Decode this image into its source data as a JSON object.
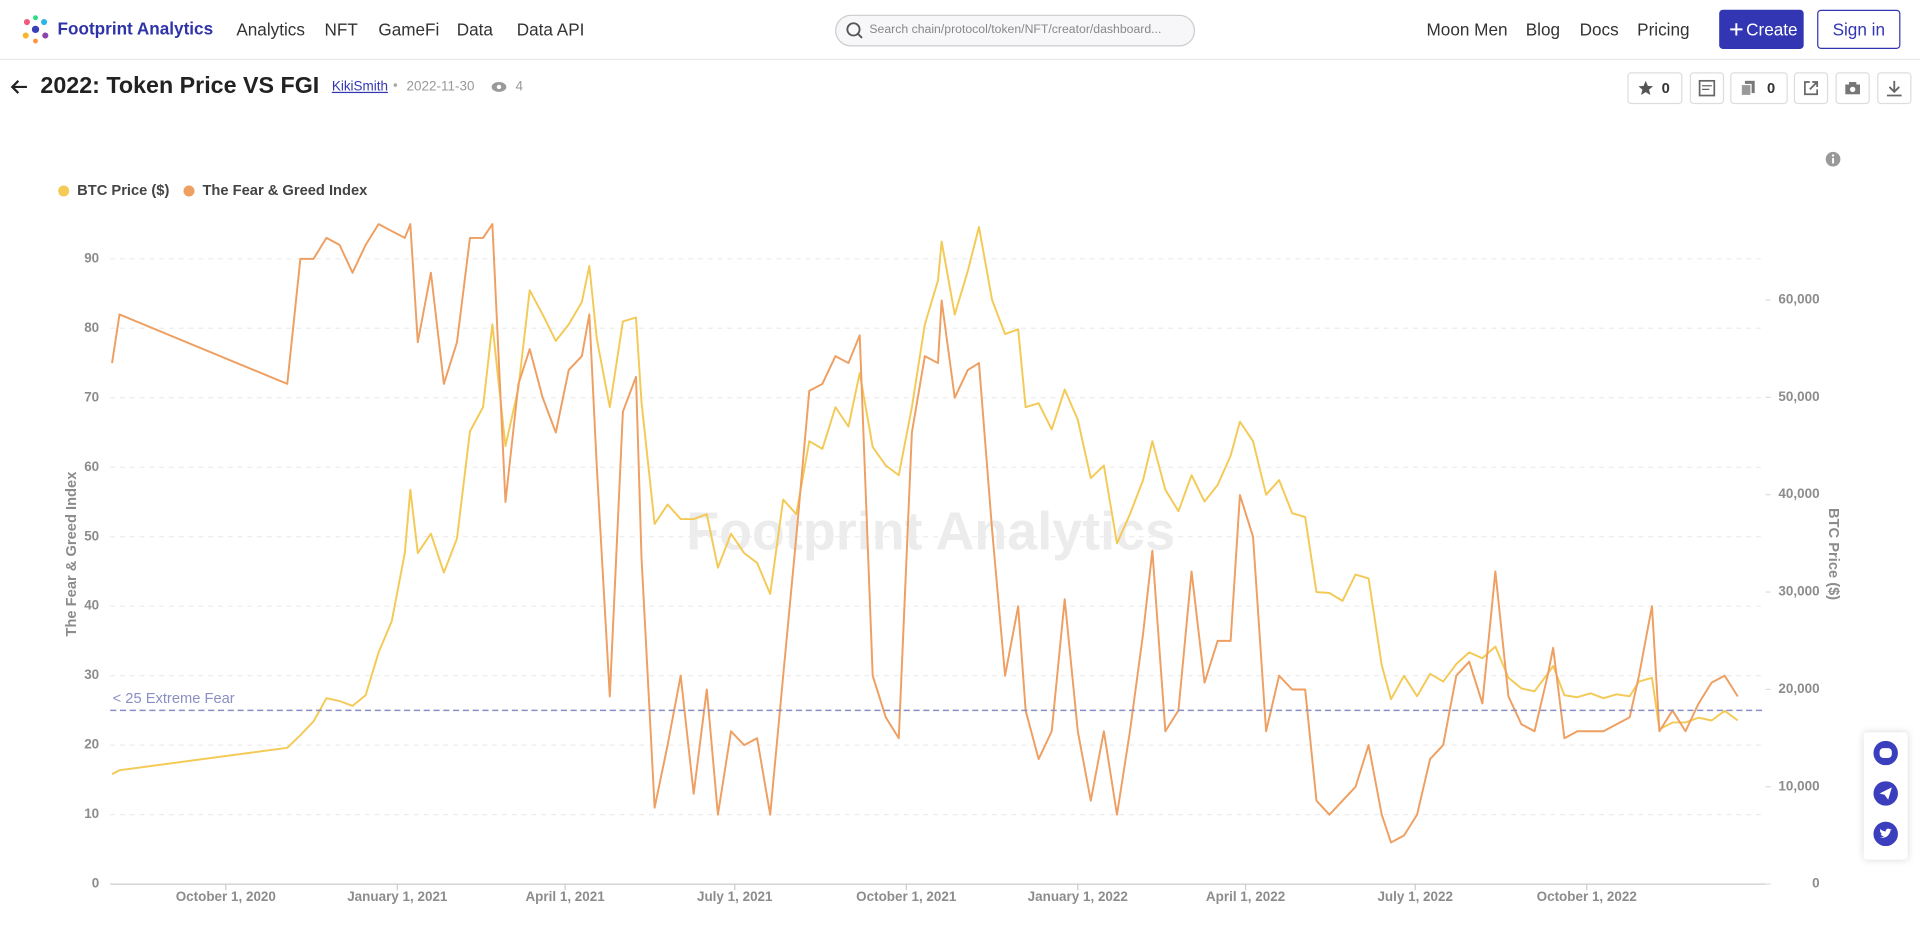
{
  "header": {
    "logo": "Footprint Analytics",
    "nav": [
      "Analytics",
      "NFT",
      "GameFi",
      "Data",
      "Data API"
    ],
    "search_placeholder": "Search chain/protocol/token/NFT/creator/dashboard...",
    "right_nav": [
      "Moon Men",
      "Blog",
      "Docs",
      "Pricing"
    ],
    "create": "Create",
    "sign_in": "Sign in"
  },
  "dashboard": {
    "title": "2022: Token Price VS FGI",
    "author": "KikiSmith",
    "date": "2022-11-30",
    "views": 4,
    "stars": 0,
    "copies": 0
  },
  "chart_data": {
    "type": "line",
    "watermark": "Footprint Analytics",
    "y_label": "The Fear & Greed Index",
    "y2_label": "BTC Price ($)",
    "legend": "top-left",
    "grid": true,
    "xlim": [
      "2020-07-31",
      "2023-01-05"
    ],
    "xticks": [
      {
        "value": "2020-10-01",
        "label": "October 1, 2020"
      },
      {
        "value": "2021-01-01",
        "label": "January 1, 2021"
      },
      {
        "value": "2021-04-01",
        "label": "April 1, 2021"
      },
      {
        "value": "2021-07-01",
        "label": "July 1, 2021"
      },
      {
        "value": "2021-10-01",
        "label": "October 1, 2021"
      },
      {
        "value": "2022-01-01",
        "label": "January 1, 2022"
      },
      {
        "value": "2022-04-01",
        "label": "April 1, 2022"
      },
      {
        "value": "2022-07-01",
        "label": "July 1, 2022"
      },
      {
        "value": "2022-10-01",
        "label": "October 1, 2022"
      }
    ],
    "ylim": [
      0,
      95
    ],
    "yticks": [
      0,
      10,
      20,
      30,
      40,
      50,
      60,
      70,
      80,
      90
    ],
    "y2lim": [
      0,
      67800
    ],
    "y2ticks": [
      0,
      {
        "value": 10000,
        "label": "10,000"
      },
      {
        "value": 20000,
        "label": "20,000"
      },
      {
        "value": 30000,
        "label": "30,000"
      },
      {
        "value": 40000,
        "label": "40,000"
      },
      {
        "value": 50000,
        "label": "50,000"
      },
      {
        "value": 60000,
        "label": "60,000"
      }
    ],
    "reference_line": {
      "value": 25,
      "label": "< 25 Extreme Fear",
      "color": "#8b8fc4"
    },
    "x": [
      "2020-08-01",
      "2020-08-05",
      "2020-11-03",
      "2020-11-10",
      "2020-11-17",
      "2020-11-24",
      "2020-12-01",
      "2020-12-08",
      "2020-12-15",
      "2020-12-22",
      "2020-12-29",
      "2021-01-05",
      "2021-01-08",
      "2021-01-12",
      "2021-01-19",
      "2021-01-26",
      "2021-02-02",
      "2021-02-09",
      "2021-02-16",
      "2021-02-21",
      "2021-02-28",
      "2021-03-07",
      "2021-03-13",
      "2021-03-20",
      "2021-03-27",
      "2021-04-03",
      "2021-04-10",
      "2021-04-14",
      "2021-04-18",
      "2021-04-25",
      "2021-05-02",
      "2021-05-09",
      "2021-05-12",
      "2021-05-19",
      "2021-05-26",
      "2021-06-02",
      "2021-06-09",
      "2021-06-16",
      "2021-06-22",
      "2021-06-29",
      "2021-07-06",
      "2021-07-13",
      "2021-07-20",
      "2021-07-27",
      "2021-08-03",
      "2021-08-10",
      "2021-08-17",
      "2021-08-24",
      "2021-08-31",
      "2021-09-06",
      "2021-09-13",
      "2021-09-20",
      "2021-09-27",
      "2021-10-04",
      "2021-10-11",
      "2021-10-18",
      "2021-10-20",
      "2021-10-27",
      "2021-11-03",
      "2021-11-09",
      "2021-11-16",
      "2021-11-23",
      "2021-11-30",
      "2021-12-04",
      "2021-12-11",
      "2021-12-18",
      "2021-12-25",
      "2022-01-01",
      "2022-01-08",
      "2022-01-15",
      "2022-01-22",
      "2022-01-29",
      "2022-02-05",
      "2022-02-10",
      "2022-02-17",
      "2022-02-24",
      "2022-03-03",
      "2022-03-10",
      "2022-03-17",
      "2022-03-24",
      "2022-03-29",
      "2022-04-05",
      "2022-04-12",
      "2022-04-19",
      "2022-04-26",
      "2022-05-03",
      "2022-05-09",
      "2022-05-16",
      "2022-05-23",
      "2022-05-30",
      "2022-06-06",
      "2022-06-13",
      "2022-06-18",
      "2022-06-25",
      "2022-07-02",
      "2022-07-09",
      "2022-07-16",
      "2022-07-23",
      "2022-07-30",
      "2022-08-06",
      "2022-08-13",
      "2022-08-20",
      "2022-08-27",
      "2022-09-03",
      "2022-09-10",
      "2022-09-13",
      "2022-09-19",
      "2022-09-26",
      "2022-10-03",
      "2022-10-10",
      "2022-10-17",
      "2022-10-24",
      "2022-10-29",
      "2022-11-05",
      "2022-11-09",
      "2022-11-16",
      "2022-11-23",
      "2022-11-30",
      "2022-12-07",
      "2022-12-14",
      "2022-12-21"
    ],
    "series": [
      {
        "name": "BTC Price ($)",
        "color": "#f4ca57",
        "axis": "y2",
        "values": [
          11300,
          11700,
          14000,
          15300,
          16700,
          19100,
          18800,
          18300,
          19400,
          23800,
          27000,
          34000,
          40500,
          34000,
          36000,
          32000,
          35500,
          46500,
          49000,
          57500,
          45000,
          51000,
          61000,
          58500,
          55800,
          57500,
          59800,
          63500,
          56000,
          49000,
          57800,
          58200,
          49500,
          37000,
          39000,
          37500,
          37500,
          38000,
          32500,
          36000,
          34000,
          33000,
          29800,
          39500,
          38000,
          45500,
          44700,
          49000,
          47000,
          52500,
          44900,
          43000,
          42000,
          49000,
          57500,
          62000,
          66000,
          58500,
          63000,
          67500,
          60000,
          56500,
          57000,
          49000,
          49400,
          46700,
          50800,
          47700,
          41700,
          43000,
          35000,
          38000,
          41500,
          45500,
          40500,
          38300,
          42000,
          39300,
          41000,
          44000,
          47500,
          45500,
          40000,
          41500,
          38100,
          37700,
          30000,
          29900,
          29100,
          31800,
          31400,
          22500,
          19000,
          21400,
          19300,
          21600,
          20800,
          22600,
          23800,
          23200,
          24400,
          21200,
          20100,
          19800,
          21600,
          22400,
          19400,
          19200,
          19600,
          19100,
          19500,
          19300,
          20800,
          21200,
          15900,
          16600,
          16600,
          17100,
          16800,
          17800,
          16800
        ]
      },
      {
        "name": "The Fear & Greed Index",
        "color": "#ee9f61",
        "values": [
          75,
          82,
          72,
          90,
          90,
          93,
          92,
          88,
          92,
          95,
          94,
          93,
          95,
          78,
          88,
          72,
          78,
          93,
          93,
          95,
          55,
          72,
          77,
          70,
          65,
          74,
          76,
          82,
          60,
          27,
          68,
          73,
          47,
          11,
          20,
          30,
          13,
          28,
          10,
          22,
          20,
          21,
          10,
          30,
          50,
          71,
          72,
          76,
          75,
          79,
          30,
          24,
          21,
          65,
          76,
          75,
          84,
          70,
          74,
          75,
          51,
          30,
          40,
          25,
          18,
          22,
          41,
          22,
          12,
          22,
          10,
          22,
          36,
          48,
          22,
          25,
          45,
          29,
          35,
          35,
          56,
          50,
          22,
          30,
          28,
          28,
          12,
          10,
          12,
          14,
          20,
          10,
          6,
          7,
          10,
          18,
          20,
          30,
          32,
          26,
          45,
          27,
          23,
          22,
          30,
          34,
          21,
          22,
          22,
          22,
          23,
          24,
          30,
          40,
          22,
          25,
          22,
          26,
          29,
          30,
          27
        ]
      }
    ]
  }
}
